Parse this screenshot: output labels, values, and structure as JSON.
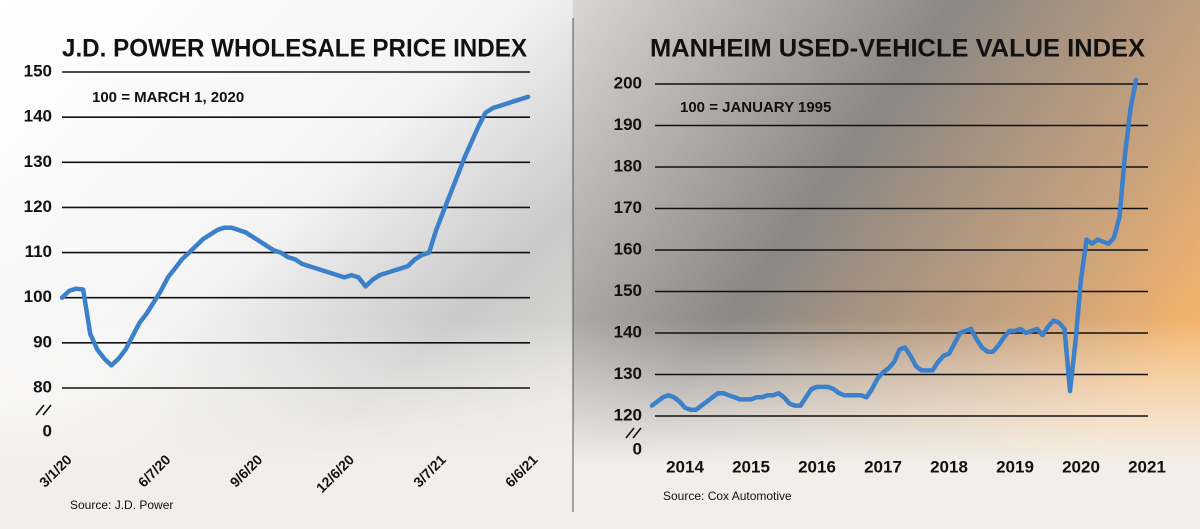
{
  "chart_data": [
    {
      "type": "line",
      "title": "J.D. POWER WHOLESALE PRICE INDEX",
      "subtitle": "100 = MARCH 1, 2020",
      "source": "Source: J.D. Power",
      "color": "#3b80c9",
      "grid": true,
      "axis_break": true,
      "ylim": [
        80,
        150
      ],
      "yticks": [
        0,
        80,
        90,
        100,
        110,
        120,
        130,
        140,
        150
      ],
      "categories": [
        "3/1/20",
        null,
        null,
        null,
        null,
        null,
        null,
        null,
        null,
        null,
        null,
        null,
        null,
        null,
        "6/7/20",
        null,
        null,
        null,
        null,
        null,
        null,
        null,
        null,
        null,
        null,
        null,
        null,
        "9/6/20",
        null,
        null,
        null,
        null,
        null,
        null,
        null,
        null,
        null,
        null,
        null,
        null,
        "12/6/20",
        null,
        null,
        null,
        null,
        null,
        null,
        null,
        null,
        null,
        null,
        null,
        null,
        "3/7/21",
        null,
        null,
        null,
        null,
        null,
        null,
        null,
        null,
        null,
        null,
        null,
        null,
        "6/6/21"
      ],
      "values": [
        100,
        101.5,
        102,
        101.8,
        92,
        88.5,
        86.5,
        85,
        86.5,
        88.5,
        91.5,
        94.5,
        96.5,
        99,
        101.5,
        104.5,
        106.5,
        108.5,
        110,
        111.5,
        113,
        114,
        115,
        115.5,
        115.5,
        115,
        114.5,
        113.5,
        112.5,
        111.5,
        110.5,
        110,
        109,
        108.5,
        107.5,
        107,
        106.5,
        106,
        105.5,
        105,
        104.5,
        105,
        104.5,
        102.5,
        104,
        105,
        105.5,
        106,
        106.5,
        107,
        108.5,
        109.5,
        110,
        115,
        119,
        123,
        127,
        131,
        134.5,
        138,
        141,
        142,
        142.5,
        143,
        143.5,
        144,
        144.5
      ]
    },
    {
      "type": "line",
      "title": "MANHEIM USED-VEHICLE VALUE INDEX",
      "subtitle": "100 = JANUARY 1995",
      "source": "Source: Cox Automotive",
      "color": "#3b80c9",
      "grid": true,
      "axis_break": true,
      "ylim": [
        120,
        200
      ],
      "yticks": [
        0,
        120,
        130,
        140,
        150,
        160,
        170,
        180,
        190,
        200
      ],
      "categories": [
        null,
        null,
        null,
        null,
        null,
        null,
        "2014",
        null,
        null,
        null,
        null,
        null,
        null,
        null,
        null,
        null,
        null,
        null,
        "2015",
        null,
        null,
        null,
        null,
        null,
        null,
        null,
        null,
        null,
        null,
        null,
        "2016",
        null,
        null,
        null,
        null,
        null,
        null,
        null,
        null,
        null,
        null,
        null,
        "2017",
        null,
        null,
        null,
        null,
        null,
        null,
        null,
        null,
        null,
        null,
        null,
        "2018",
        null,
        null,
        null,
        null,
        null,
        null,
        null,
        null,
        null,
        null,
        null,
        "2019",
        null,
        null,
        null,
        null,
        null,
        null,
        null,
        null,
        null,
        null,
        null,
        "2020",
        null,
        null,
        null,
        null,
        null,
        null,
        null,
        null,
        null,
        null,
        null,
        "2021"
      ],
      "values": [
        122.5,
        123.5,
        124.5,
        125,
        124.5,
        123.5,
        122,
        121.5,
        121.5,
        122.5,
        123.5,
        124.5,
        125.5,
        125.5,
        125,
        124.5,
        124,
        124,
        124,
        124.5,
        124.5,
        125,
        125,
        125.5,
        124.5,
        123,
        122.5,
        122.5,
        124.5,
        126.5,
        127,
        127,
        127,
        126.5,
        125.5,
        125,
        125,
        125,
        125,
        124.5,
        126.5,
        129,
        130.5,
        131.5,
        133,
        136,
        136.5,
        134.5,
        132,
        131,
        131,
        131,
        133,
        134.5,
        135,
        137.5,
        140,
        140.5,
        141,
        138.5,
        136.5,
        135.5,
        135.5,
        137,
        139,
        140.5,
        140.5,
        141,
        140,
        140.5,
        141,
        139.5,
        141.5,
        143,
        142.5,
        141,
        126,
        138,
        153,
        162.5,
        161.5,
        162.5,
        162,
        161.5,
        163,
        168,
        183,
        194,
        201,
        null,
        null
      ]
    }
  ]
}
